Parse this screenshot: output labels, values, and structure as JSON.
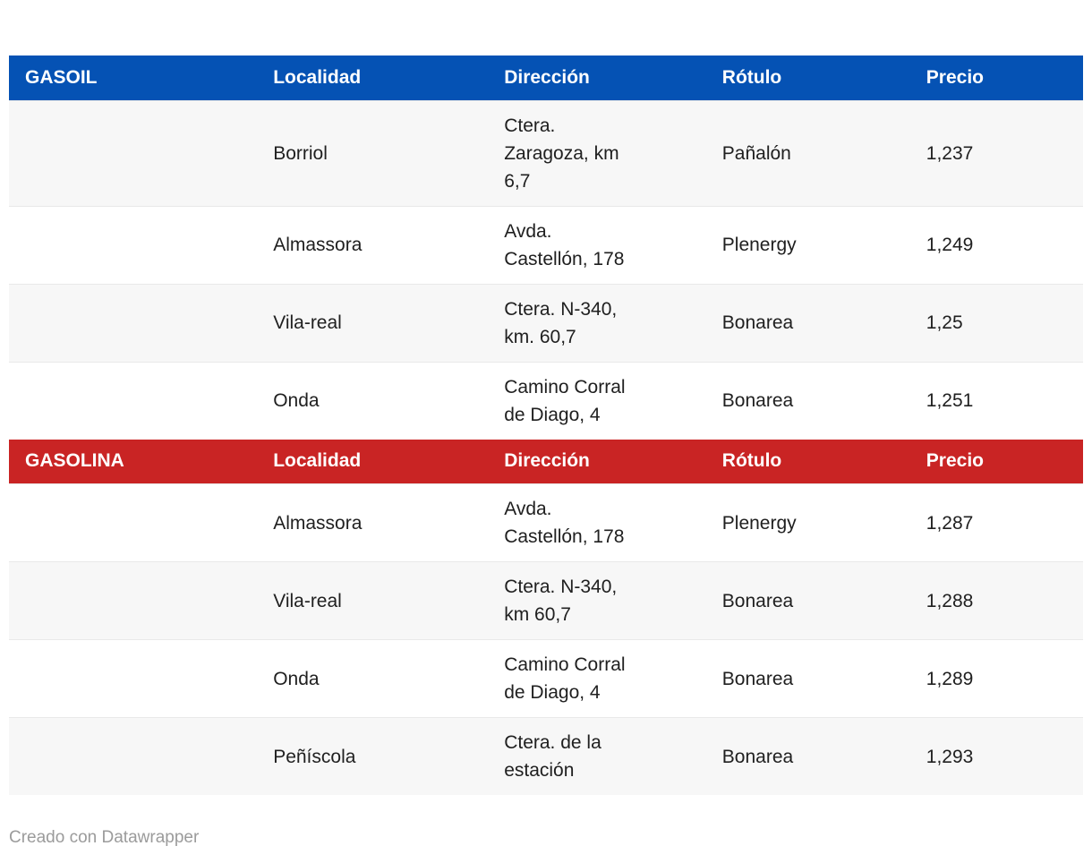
{
  "colors": {
    "gasoil_header_bg": "#0552b4",
    "gasolina_header_bg": "#c92424",
    "header_text": "#ffffff",
    "row_alt_bg": "#f7f7f7",
    "body_text": "#202020",
    "footer_text": "#9b9b9b"
  },
  "tables": [
    {
      "title": "GASOIL",
      "columns": [
        "Localidad",
        "Dirección",
        "Rótulo",
        "Precio"
      ],
      "rows": [
        {
          "localidad": "Borriol",
          "direccion": "Ctera.\nZaragoza, km\n6,7",
          "rotulo": "Pañalón",
          "precio": "1,237"
        },
        {
          "localidad": "Almassora",
          "direccion": "Avda.\nCastellón, 178",
          "rotulo": "Plenergy",
          "precio": "1,249"
        },
        {
          "localidad": "Vila-real",
          "direccion": "Ctera. N-340,\nkm. 60,7",
          "rotulo": "Bonarea",
          "precio": "1,25"
        },
        {
          "localidad": "Onda",
          "direccion": "Camino Corral\nde Diago, 4",
          "rotulo": "Bonarea",
          "precio": "1,251"
        }
      ]
    },
    {
      "title": "GASOLINA",
      "columns": [
        "Localidad",
        "Dirección",
        "Rótulo",
        "Precio"
      ],
      "rows": [
        {
          "localidad": "Almassora",
          "direccion": "Avda.\nCastellón, 178",
          "rotulo": "Plenergy",
          "precio": "1,287"
        },
        {
          "localidad": "Vila-real",
          "direccion": "Ctera. N-340,\nkm 60,7",
          "rotulo": "Bonarea",
          "precio": "1,288"
        },
        {
          "localidad": "Onda",
          "direccion": "Camino Corral\nde Diago, 4",
          "rotulo": "Bonarea",
          "precio": "1,289"
        },
        {
          "localidad": "Peñíscola",
          "direccion": "Ctera. de la\nestación",
          "rotulo": "Bonarea",
          "precio": "1,293"
        }
      ]
    }
  ],
  "footer": {
    "credit": "Creado con Datawrapper"
  },
  "chart_data": [
    {
      "type": "table",
      "title": "GASOIL",
      "columns": [
        "Localidad",
        "Dirección",
        "Rótulo",
        "Precio"
      ],
      "rows": [
        [
          "Borriol",
          "Ctera. Zaragoza, km 6,7",
          "Pañalón",
          "1,237"
        ],
        [
          "Almassora",
          "Avda. Castellón, 178",
          "Plenergy",
          "1,249"
        ],
        [
          "Vila-real",
          "Ctera. N-340, km. 60,7",
          "Bonarea",
          "1,25"
        ],
        [
          "Onda",
          "Camino Corral de Diago, 4",
          "Bonarea",
          "1,251"
        ]
      ]
    },
    {
      "type": "table",
      "title": "GASOLINA",
      "columns": [
        "Localidad",
        "Dirección",
        "Rótulo",
        "Precio"
      ],
      "rows": [
        [
          "Almassora",
          "Avda. Castellón, 178",
          "Plenergy",
          "1,287"
        ],
        [
          "Vila-real",
          "Ctera. N-340, km 60,7",
          "Bonarea",
          "1,288"
        ],
        [
          "Onda",
          "Camino Corral de Diago, 4",
          "Bonarea",
          "1,289"
        ],
        [
          "Peñíscola",
          "Ctera. de la estación",
          "Bonarea",
          "1,293"
        ]
      ]
    }
  ]
}
